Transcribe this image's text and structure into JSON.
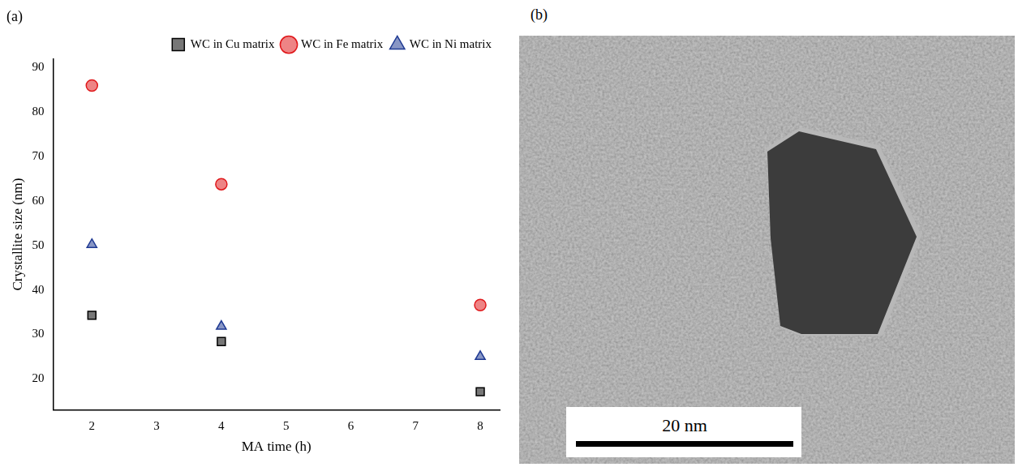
{
  "chart_data": {
    "type": "scatter",
    "title": "(a)",
    "x_label": "MA time (h)",
    "y_label": "Crystallite size (nm)",
    "x": [
      2,
      4,
      8
    ],
    "series": [
      {
        "name": "WC in Cu matrix",
        "color": "#000000",
        "marker": "square",
        "values": [
          34.3,
          28.4,
          17.1
        ]
      },
      {
        "name": "WC in Fe matrix",
        "color": "#e0181b",
        "marker": "circle",
        "values": [
          86,
          63.8,
          36.6
        ]
      },
      {
        "name": "WC in Ni matrix",
        "color": "#1f3a93",
        "marker": "triangle",
        "values": [
          50.2,
          31.8,
          25
        ]
      }
    ],
    "xlim": [
      1.4,
      8.3
    ],
    "xticks": [
      2,
      3,
      4,
      5,
      6,
      7,
      8
    ],
    "ylim": [
      13,
      92
    ],
    "yticks": [
      20,
      30,
      40,
      50,
      60,
      70,
      80,
      90
    ],
    "grid": false,
    "legend": "top-right"
  },
  "image": {
    "label": "(b)",
    "scale_bar": "20 nm"
  }
}
